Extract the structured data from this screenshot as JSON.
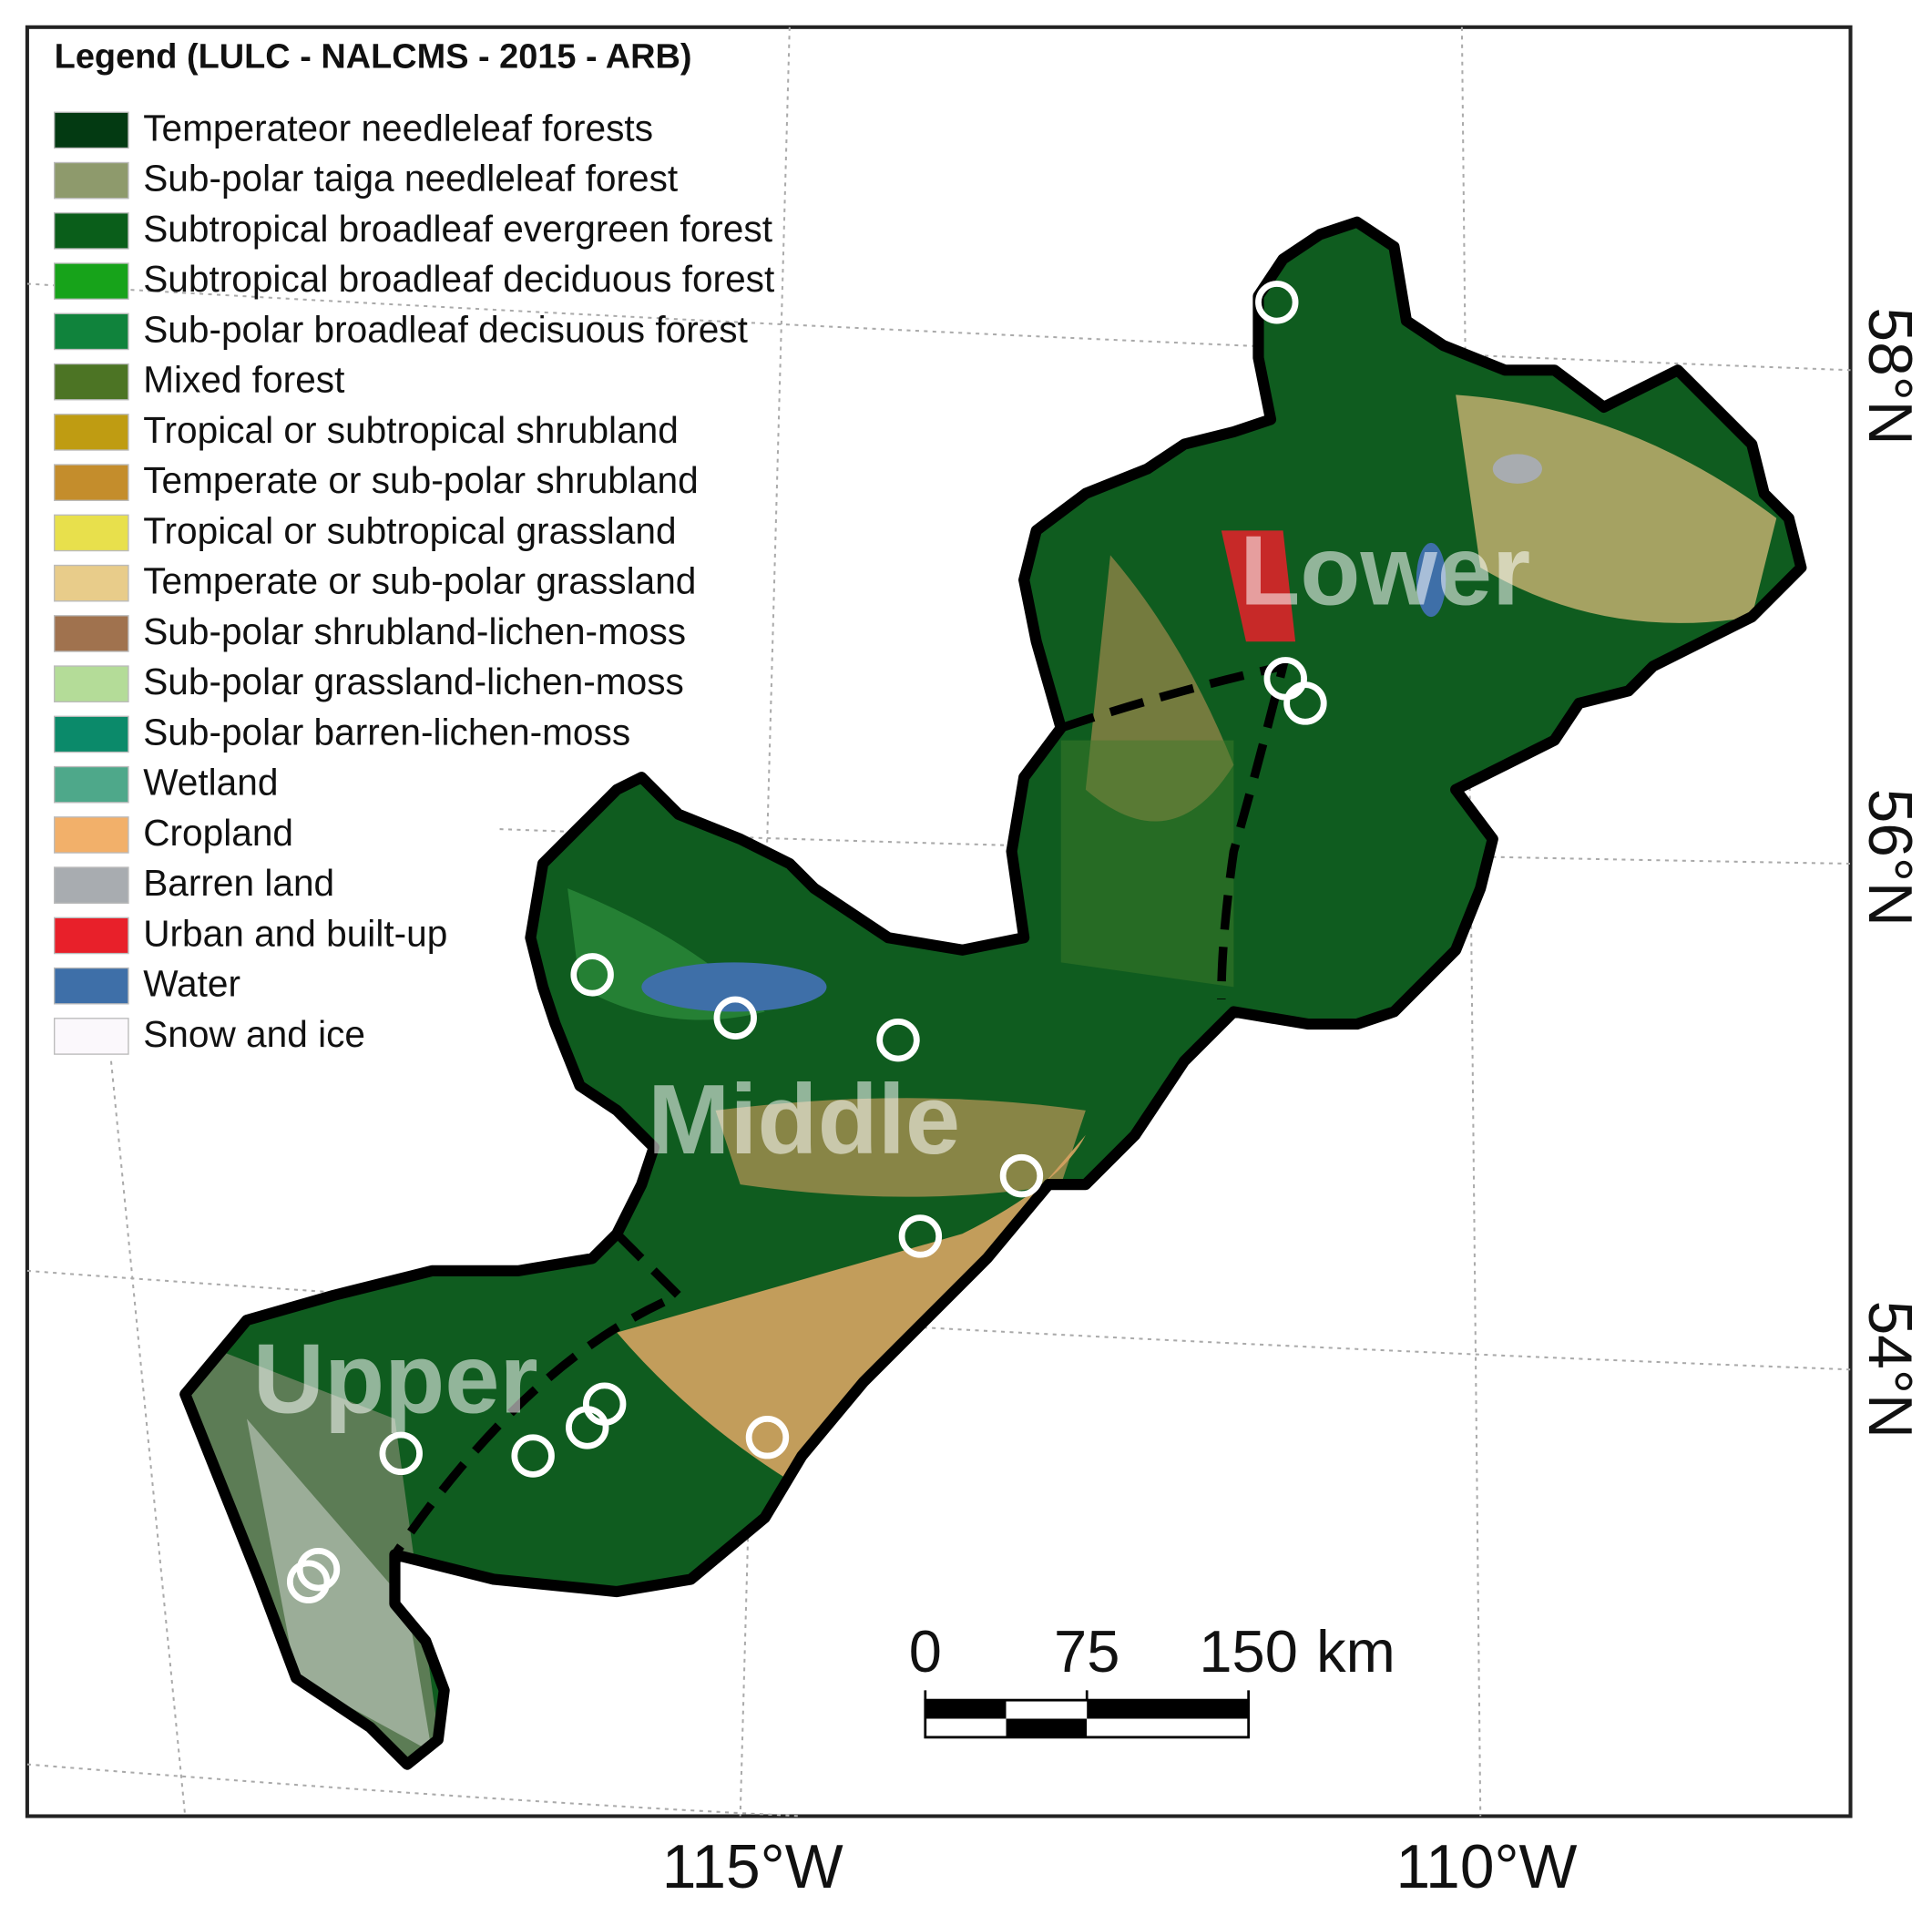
{
  "legend": {
    "title": "Legend (LULC - NALCMS - 2015 - ARB)",
    "items": [
      {
        "label": "Temperateor needleleaf forests",
        "color": "#033a12"
      },
      {
        "label": "Sub-polar taiga needleleaf forest",
        "color": "#8e9a6c"
      },
      {
        "label": "Subtropical broadleaf evergreen forest",
        "color": "#0a5e1a"
      },
      {
        "label": "Subtropical broadleaf deciduous forest",
        "color": "#17a31a"
      },
      {
        "label": "Sub-polar broadleaf decisuous forest",
        "color": "#10833c"
      },
      {
        "label": "Mixed forest",
        "color": "#4c7424"
      },
      {
        "label": "Tropical or subtropical shrubland",
        "color": "#bf9c12"
      },
      {
        "label": "Temperate or sub-polar shrubland",
        "color": "#c48d2c"
      },
      {
        "label": "Tropical or subtropical grassland",
        "color": "#e8e04c"
      },
      {
        "label": "Temperate or sub-polar grassland",
        "color": "#e8cc8a"
      },
      {
        "label": "Sub-polar shrubland-lichen-moss",
        "color": "#a0724e"
      },
      {
        "label": "Sub-polar grassland-lichen-moss",
        "color": "#b4dc98"
      },
      {
        "label": "Sub-polar barren-lichen-moss",
        "color": "#0b8a6a"
      },
      {
        "label": "Wetland",
        "color": "#4ea88a"
      },
      {
        "label": "Cropland",
        "color": "#f2b06a"
      },
      {
        "label": "Barren land",
        "color": "#a8acb0"
      },
      {
        "label": "Urban and built-up",
        "color": "#e8202a"
      },
      {
        "label": "Water",
        "color": "#3e6fa8"
      },
      {
        "label": "Snow and ice",
        "color": "#fbf8fc"
      }
    ]
  },
  "regions": [
    "Upper",
    "Middle",
    "Lower"
  ],
  "latitude_labels": [
    "58°N",
    "56°N",
    "54°N"
  ],
  "longitude_labels": [
    "115°W",
    "110°W"
  ],
  "scale_bar": {
    "ticks": [
      0,
      75,
      150
    ],
    "unit": "km"
  }
}
